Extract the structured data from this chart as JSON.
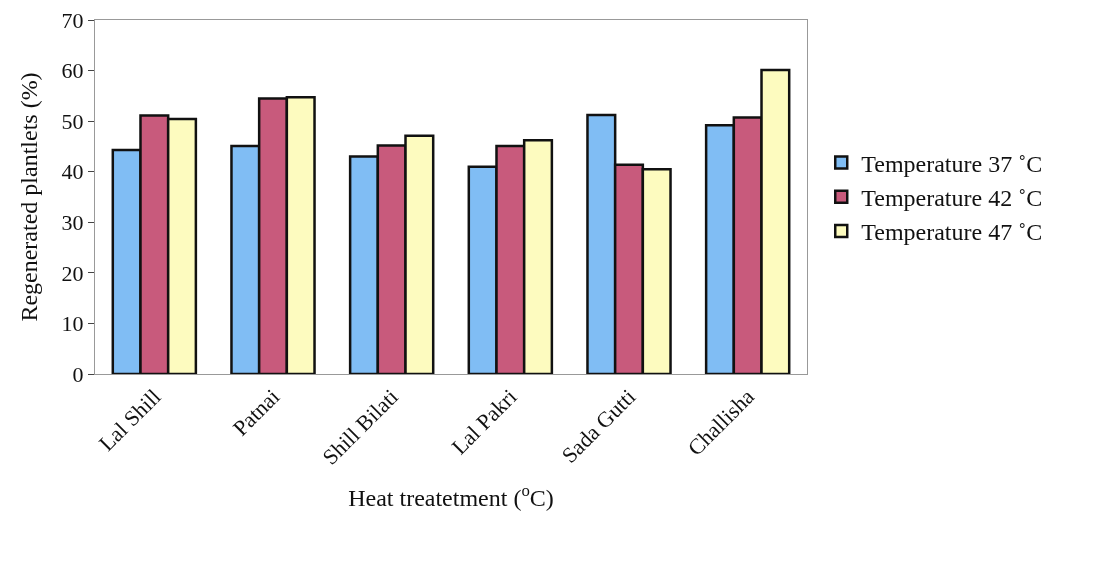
{
  "chart_data": {
    "type": "bar",
    "xlabel": "Heat treatetment ($^{o}$C)",
    "ylabel": "Regenerated plantlets (%)",
    "categories": [
      "Lal Shill",
      "Patnai",
      "Shill Bilati",
      "Lal Pakri",
      "Sada Gutti",
      "Challisha"
    ],
    "series": [
      {
        "name": "Temperature 37 ˚C",
        "color": "#80bdf4",
        "values": [
          44.3,
          45.1,
          43.0,
          41.0,
          51.2,
          49.2
        ]
      },
      {
        "name": "Temperature 42 ˚C",
        "color": "#c85a7c",
        "values": [
          51.1,
          54.5,
          45.2,
          45.1,
          41.4,
          50.7
        ]
      },
      {
        "name": "Temperature 47 ˚C",
        "color": "#fdfbbf",
        "values": [
          50.4,
          54.7,
          47.1,
          46.2,
          40.5,
          60.1
        ]
      }
    ],
    "ylim": [
      0,
      70
    ],
    "yticks": [
      0,
      10,
      20,
      30,
      40,
      50,
      60,
      70
    ],
    "grid": false,
    "legend": "right"
  }
}
